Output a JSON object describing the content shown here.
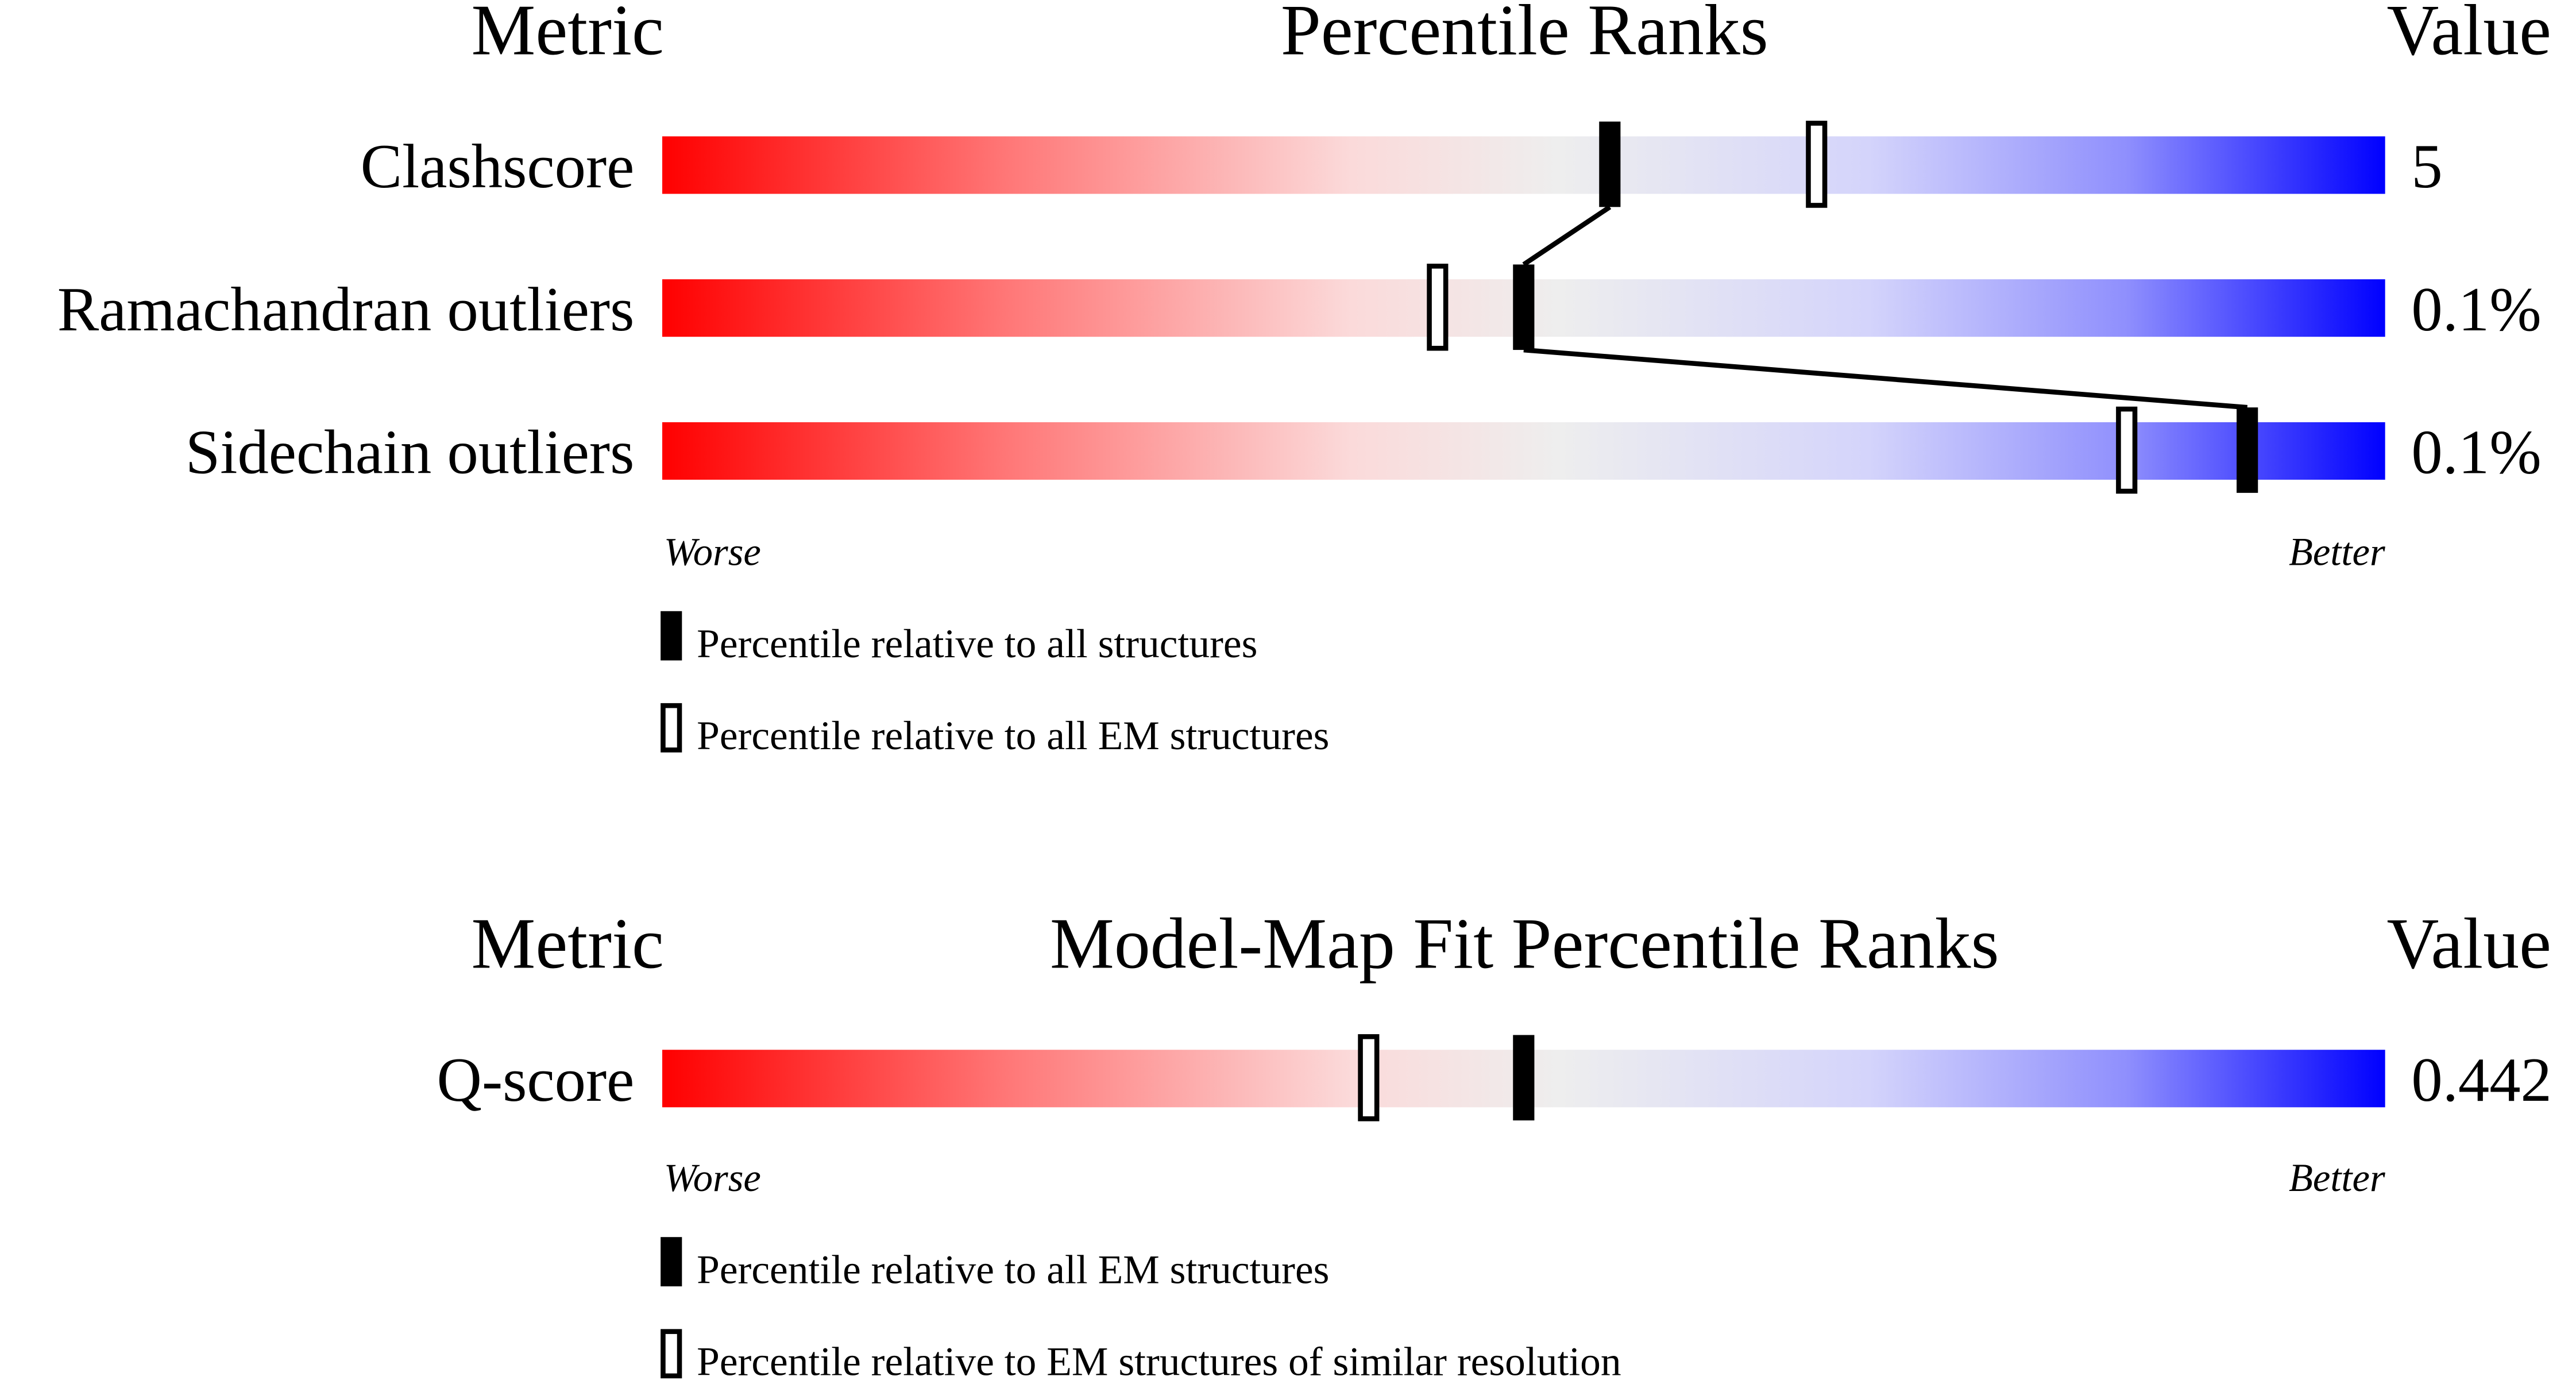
{
  "chart_data": [
    {
      "type": "percentile-slider",
      "headers": {
        "metric": "Metric",
        "title": "Percentile Ranks",
        "value": "Value"
      },
      "xlim": [
        0,
        100
      ],
      "rows": [
        {
          "metric": "Clashscore",
          "value": "5",
          "percentile_all": 55,
          "percentile_em": 67
        },
        {
          "metric": "Ramachandran outliers",
          "value": "0.1%",
          "percentile_all": 50,
          "percentile_em": 45
        },
        {
          "metric": "Sidechain outliers",
          "value": "0.1%",
          "percentile_all": 92,
          "percentile_em": 85
        }
      ],
      "axis": {
        "left": "Worse",
        "right": "Better"
      },
      "legend": {
        "filled": "Percentile relative to all structures",
        "hollow": "Percentile relative to all EM structures"
      },
      "connect_filled_markers": true
    },
    {
      "type": "percentile-slider",
      "headers": {
        "metric": "Metric",
        "title": "Model-Map Fit Percentile Ranks",
        "value": "Value"
      },
      "xlim": [
        0,
        100
      ],
      "rows": [
        {
          "metric": "Q-score",
          "value": "0.442",
          "percentile_all": 50,
          "percentile_em": 41
        }
      ],
      "axis": {
        "left": "Worse",
        "right": "Better"
      },
      "legend": {
        "filled": "Percentile relative to all EM structures",
        "hollow": "Percentile relative to EM structures of similar resolution"
      },
      "connect_filled_markers": false
    }
  ],
  "colors": {
    "worse": "#ff0000",
    "middle": "#eeeeee",
    "better": "#0000ff",
    "marker": "#000000"
  }
}
